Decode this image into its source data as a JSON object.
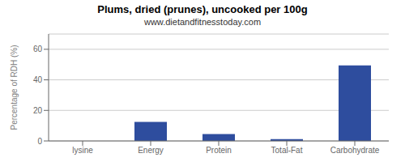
{
  "chart_data": {
    "type": "bar",
    "title": "Plums, dried (prunes), uncooked per 100g",
    "subtitle": "www.dietandfitnesstoday.com",
    "categories": [
      "lysine",
      "Energy",
      "Protein",
      "Total-Fat",
      "Carbohydrate"
    ],
    "values": [
      0.0,
      12.5,
      4.5,
      1.2,
      49.5
    ],
    "color": "#2e4d9e",
    "ylim": [
      0,
      70
    ],
    "yticks": [
      0,
      20,
      40,
      60
    ],
    "ylabel": "Percentage of RDH (%)",
    "grid": true
  }
}
